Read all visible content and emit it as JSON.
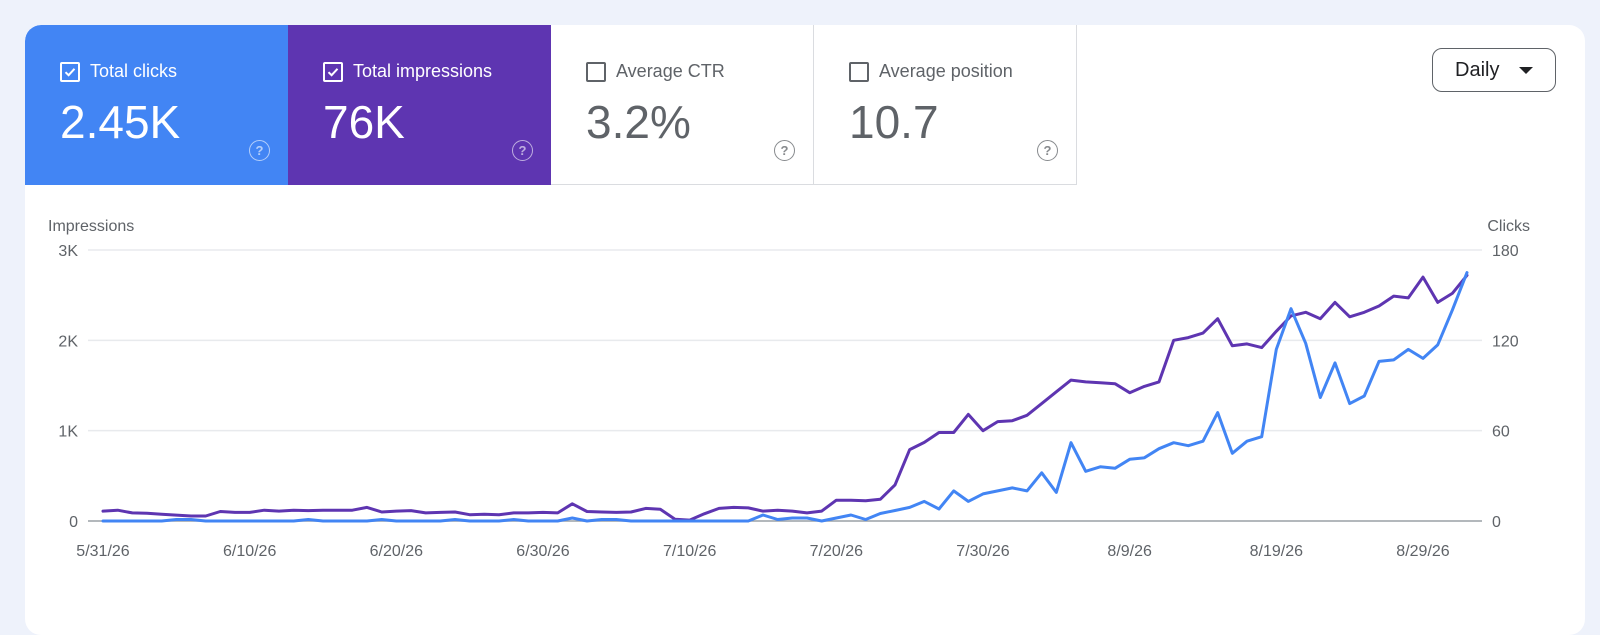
{
  "metrics": [
    {
      "name": "total-clicks",
      "label": "Total clicks",
      "value": "2.45K",
      "checked": true,
      "color": "#4285f4"
    },
    {
      "name": "total-impressions",
      "label": "Total impressions",
      "value": "76K",
      "checked": true,
      "color": "#5e35b1"
    },
    {
      "name": "average-ctr",
      "label": "Average CTR",
      "value": "3.2%",
      "checked": false
    },
    {
      "name": "average-position",
      "label": "Average position",
      "value": "10.7",
      "checked": false
    }
  ],
  "help_glyph": "?",
  "granularity": {
    "selected": "Daily"
  },
  "chart_data": {
    "type": "line",
    "y_left_label": "Impressions",
    "y_right_label": "Clicks",
    "y_left_ticks": [
      "0",
      "1K",
      "2K",
      "3K"
    ],
    "y_right_ticks": [
      "0",
      "60",
      "120",
      "180"
    ],
    "y_left_range": [
      0,
      3000
    ],
    "y_right_range": [
      0,
      180
    ],
    "x_tick_labels": [
      "5/31/26",
      "6/10/26",
      "6/20/26",
      "6/30/26",
      "7/10/26",
      "7/20/26",
      "7/30/26",
      "8/9/26",
      "8/19/26",
      "8/29/26"
    ],
    "x_start": "5/31/26",
    "grid": true,
    "series": [
      {
        "name": "Total impressions",
        "axis": "left",
        "color": "#5e35b1",
        "values": [
          110,
          120,
          90,
          85,
          75,
          65,
          55,
          55,
          105,
          95,
          95,
          120,
          110,
          120,
          115,
          120,
          120,
          120,
          150,
          100,
          110,
          115,
          90,
          95,
          100,
          70,
          75,
          70,
          90,
          90,
          95,
          90,
          190,
          105,
          100,
          95,
          100,
          140,
          130,
          20,
          10,
          80,
          140,
          150,
          145,
          110,
          120,
          110,
          90,
          110,
          230,
          230,
          225,
          240,
          400,
          790,
          870,
          980,
          980,
          1180,
          1000,
          1100,
          1110,
          1170,
          1300,
          1430,
          1560,
          1540,
          1530,
          1520,
          1420,
          1490,
          1540,
          2000,
          2030,
          2080,
          2240,
          1940,
          1960,
          1920,
          2100,
          2270,
          2310,
          2240,
          2420,
          2260,
          2310,
          2380,
          2490,
          2470,
          2700,
          2420,
          2520,
          2720
        ]
      },
      {
        "name": "Total clicks",
        "axis": "right",
        "color": "#4285f4",
        "values": [
          0,
          0,
          0,
          0,
          0,
          1,
          1,
          0,
          0,
          0,
          0,
          0,
          0,
          0,
          1,
          0,
          0,
          0,
          0,
          1,
          0,
          0,
          0,
          0,
          1,
          0,
          0,
          0,
          1,
          0,
          0,
          0,
          2,
          0,
          1,
          1,
          0,
          0,
          0,
          0,
          0,
          0,
          0,
          0,
          0,
          4,
          1,
          2,
          2,
          0,
          2,
          4,
          1,
          5,
          7,
          9,
          13,
          8,
          20,
          13,
          18,
          20,
          22,
          20,
          32,
          19,
          52,
          33,
          36,
          35,
          41,
          42,
          48,
          52,
          50,
          53,
          72,
          45,
          53,
          56,
          114,
          141,
          118,
          82,
          105,
          78,
          83,
          106,
          107,
          114,
          108,
          117,
          140,
          165
        ]
      }
    ]
  }
}
